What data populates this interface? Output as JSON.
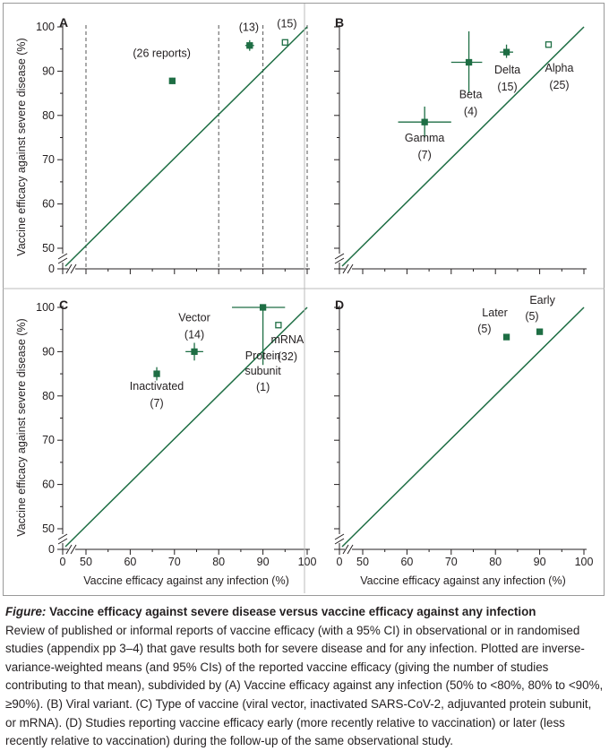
{
  "colors": {
    "accent": "#1e6e44",
    "axis": "#231f20",
    "dashed": "#555555"
  },
  "shared": {
    "xlabel": "Vaccine efficacy against any infection (%)",
    "ylabel": "Vaccine efficacy against severe disease (%)"
  },
  "chart_data": [
    {
      "panel": "A",
      "type": "scatter",
      "title": "",
      "xlabel": "",
      "ylabel": "Vaccine efficacy against severe disease (%)",
      "xlim": [
        50,
        100
      ],
      "ylim": [
        50,
        100
      ],
      "y_ticks": [
        100,
        90,
        80,
        70,
        60,
        50
      ],
      "y_zero_label": "0",
      "x_ticks": [],
      "axis_break": true,
      "diagonal": "y = x",
      "vlines": [
        50,
        80,
        90,
        100
      ],
      "points": [
        {
          "label": "(26 reports)",
          "x": 69.5,
          "y": 87.8,
          "filled": true,
          "xerr": [
            69,
            70
          ],
          "yerr": [
            87.1,
            88.5
          ]
        },
        {
          "label": "(13)",
          "x": 87,
          "y": 95.8,
          "filled": true,
          "xerr": [
            86,
            88
          ],
          "yerr": [
            94.6,
            97
          ]
        },
        {
          "label": "(15)",
          "x": 95,
          "y": 96.5,
          "filled": false,
          "xerr": [
            95,
            95
          ],
          "yerr": [
            96.5,
            96.5
          ]
        }
      ]
    },
    {
      "panel": "B",
      "type": "scatter",
      "title": "",
      "xlabel": "",
      "ylabel": "",
      "xlim": [
        50,
        100
      ],
      "ylim": [
        50,
        100
      ],
      "y_ticks": [],
      "x_ticks": [],
      "axis_break": true,
      "diagonal": "y = x",
      "vlines": [],
      "points": [
        {
          "name": "Gamma",
          "count": "(7)",
          "x": 64,
          "y": 78.5,
          "filled": true,
          "xerr": [
            58,
            70
          ],
          "yerr": [
            75,
            82
          ]
        },
        {
          "name": "Beta",
          "count": "(4)",
          "x": 74,
          "y": 92,
          "filled": true,
          "xerr": [
            70,
            77
          ],
          "yerr": [
            85,
            99
          ]
        },
        {
          "name": "Delta",
          "count": "(15)",
          "x": 82.5,
          "y": 94.3,
          "filled": true,
          "xerr": [
            81,
            84
          ],
          "yerr": [
            93,
            96
          ]
        },
        {
          "name": "Alpha",
          "count": "(25)",
          "x": 92,
          "y": 96,
          "filled": false,
          "xerr": [
            92,
            92
          ],
          "yerr": [
            96,
            96
          ]
        }
      ]
    },
    {
      "panel": "C",
      "type": "scatter",
      "title": "",
      "xlabel": "Vaccine efficacy against any infection (%)",
      "ylabel": "Vaccine efficacy against severe disease (%)",
      "xlim": [
        50,
        100
      ],
      "ylim": [
        50,
        100
      ],
      "y_ticks": [
        100,
        90,
        80,
        70,
        60,
        50
      ],
      "y_zero_label": "0",
      "x_ticks": [
        50,
        60,
        70,
        80,
        90,
        100
      ],
      "x_zero_label": "0",
      "axis_break": true,
      "diagonal": "y = x",
      "vlines": [],
      "points": [
        {
          "name": "Inactivated",
          "count": "(7)",
          "x": 66,
          "y": 85,
          "filled": true,
          "xerr": [
            65.5,
            66.5
          ],
          "yerr": [
            83.5,
            86.5
          ]
        },
        {
          "name": "Vector",
          "count": "(14)",
          "x": 74.5,
          "y": 90,
          "filled": true,
          "xerr": [
            72.5,
            76.5
          ],
          "yerr": [
            88,
            92
          ]
        },
        {
          "name": "Protein subunit",
          "count": "(1)",
          "x": 90,
          "y": 100,
          "filled": true,
          "xerr": [
            83,
            95
          ],
          "yerr": [
            87,
            100
          ]
        },
        {
          "name": "mRNA",
          "count": "(32)",
          "x": 93.5,
          "y": 96,
          "filled": false,
          "xerr": [
            93.5,
            93.5
          ],
          "yerr": [
            96,
            96
          ]
        }
      ]
    },
    {
      "panel": "D",
      "type": "scatter",
      "title": "",
      "xlabel": "Vaccine efficacy against any infection (%)",
      "ylabel": "",
      "xlim": [
        50,
        100
      ],
      "ylim": [
        50,
        100
      ],
      "y_ticks": [],
      "x_ticks": [
        50,
        60,
        70,
        80,
        90,
        100
      ],
      "x_zero_label": "0",
      "axis_break": true,
      "diagonal": "y = x",
      "vlines": [],
      "points": [
        {
          "name": "Later",
          "count": "(5)",
          "x": 82.5,
          "y": 93.3,
          "filled": true,
          "xerr": [
            82.5,
            82.5
          ],
          "yerr": [
            93.3,
            93.3
          ]
        },
        {
          "name": "Early",
          "count": "(5)",
          "x": 90,
          "y": 94.5,
          "filled": true,
          "xerr": [
            90,
            90
          ],
          "yerr": [
            94.5,
            94.5
          ]
        }
      ]
    }
  ],
  "caption": {
    "title_word": "Figure:",
    "title_rest": " Vaccine efficacy against severe disease versus vaccine efficacy against any infection",
    "body": "Review of published or informal reports of vaccine efficacy (with a 95% CI) in observational or in randomised studies (appendix pp 3–4) that gave results both for severe disease and for any infection. Plotted are inverse-variance-weighted means (and 95% CIs) of the reported vaccine efficacy (giving the number of studies contributing to that mean), subdivided by (A) Vaccine efficacy against any infection (50% to <80%, 80% to <90%, ≥90%). (B) Viral variant. (C) Type of vaccine (viral vector, inactivated SARS-CoV-2, adjuvanted protein subunit, or mRNA). (D) Studies reporting vaccine efficacy early (more recently relative to vaccination) or later (less recently relative to vaccination) during the follow-up of the same observational study."
  }
}
